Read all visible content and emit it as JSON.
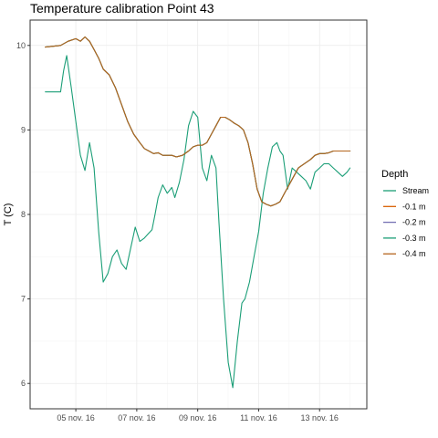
{
  "chart_data": {
    "type": "line",
    "title": "Temperature calibration Point 43",
    "xlabel": "",
    "ylabel": "T (C)",
    "x_tick_labels": [
      "05 nov. 16",
      "07 nov. 16",
      "09 nov. 16",
      "11 nov. 16",
      "13 nov. 16"
    ],
    "x_tick_days": [
      5,
      7,
      9,
      11,
      13
    ],
    "y_ticks": [
      6,
      7,
      8,
      9,
      10
    ],
    "xlim": [
      3.5,
      14.55
    ],
    "ylim": [
      5.7,
      10.3
    ],
    "grid": true,
    "legend": {
      "title": "Depth",
      "position": "right"
    },
    "series": [
      {
        "name": "Stream",
        "color": "#1b9e77",
        "x": [
          4.0,
          4.5,
          4.6,
          4.7,
          4.85,
          5.0,
          5.15,
          5.3,
          5.45,
          5.6,
          5.75,
          5.9,
          6.05,
          6.2,
          6.35,
          6.5,
          6.65,
          6.8,
          6.95,
          7.1,
          7.25,
          7.4,
          7.5,
          7.6,
          7.7,
          7.85,
          8.0,
          8.15,
          8.25,
          8.4,
          8.55,
          8.7,
          8.85,
          9.0,
          9.15,
          9.3,
          9.45,
          9.6,
          9.7,
          9.85,
          10.0,
          10.15,
          10.3,
          10.45,
          10.55,
          10.7,
          10.85,
          11.0,
          11.15,
          11.3,
          11.45,
          11.6,
          11.7,
          11.8,
          11.95,
          12.1,
          12.25,
          12.4,
          12.55,
          12.7,
          12.85,
          13.0,
          13.15,
          13.3,
          13.45,
          13.6,
          13.75,
          13.9,
          14.0
        ],
        "y": [
          9.45,
          9.45,
          9.7,
          9.88,
          9.5,
          9.1,
          8.7,
          8.52,
          8.85,
          8.55,
          7.8,
          7.2,
          7.3,
          7.5,
          7.58,
          7.42,
          7.35,
          7.6,
          7.85,
          7.68,
          7.72,
          7.78,
          7.82,
          8.0,
          8.2,
          8.35,
          8.25,
          8.32,
          8.2,
          8.38,
          8.65,
          9.05,
          9.22,
          9.15,
          8.55,
          8.4,
          8.7,
          8.55,
          7.9,
          7.0,
          6.25,
          5.95,
          6.5,
          6.95,
          7.0,
          7.2,
          7.5,
          7.8,
          8.25,
          8.55,
          8.8,
          8.85,
          8.75,
          8.7,
          8.3,
          8.55,
          8.5,
          8.45,
          8.4,
          8.3,
          8.5,
          8.55,
          8.6,
          8.6,
          8.55,
          8.5,
          8.45,
          8.5,
          8.55
        ]
      },
      {
        "name": "-0.1 m",
        "color": "#d95f02",
        "x": [
          4.0,
          4.5,
          4.75,
          5.0,
          5.15,
          5.3,
          5.45,
          5.6,
          5.75,
          5.9,
          6.1,
          6.3,
          6.5,
          6.7,
          6.9,
          7.1,
          7.25,
          7.4,
          7.55,
          7.7,
          7.85,
          8.0,
          8.15,
          8.3,
          8.5,
          8.7,
          8.85,
          9.0,
          9.15,
          9.3,
          9.45,
          9.6,
          9.75,
          9.9,
          10.05,
          10.2,
          10.35,
          10.5,
          10.65,
          10.8,
          10.95,
          11.1,
          11.25,
          11.4,
          11.55,
          11.7,
          11.85,
          12.0,
          12.15,
          12.3,
          12.5,
          12.7,
          12.85,
          13.0,
          13.15,
          13.3,
          13.45,
          13.6,
          13.75,
          13.9,
          14.0
        ],
        "y": [
          9.98,
          10.0,
          10.05,
          10.08,
          10.05,
          10.1,
          10.05,
          9.95,
          9.85,
          9.72,
          9.65,
          9.5,
          9.3,
          9.1,
          8.95,
          8.85,
          8.78,
          8.75,
          8.72,
          8.73,
          8.7,
          8.7,
          8.7,
          8.68,
          8.7,
          8.75,
          8.8,
          8.82,
          8.82,
          8.85,
          8.95,
          9.05,
          9.15,
          9.15,
          9.12,
          9.08,
          9.05,
          9.0,
          8.85,
          8.6,
          8.3,
          8.15,
          8.12,
          8.1,
          8.12,
          8.15,
          8.25,
          8.35,
          8.45,
          8.55,
          8.6,
          8.65,
          8.7,
          8.72,
          8.72,
          8.73,
          8.75,
          8.75,
          8.75,
          8.75,
          8.75
        ]
      },
      {
        "name": "-0.2 m",
        "color": "#7570b3",
        "x": [
          4.0,
          4.5,
          4.75,
          5.0,
          5.15,
          5.3,
          5.45,
          5.6,
          5.75,
          5.9,
          6.1,
          6.3,
          6.5,
          6.7,
          6.9,
          7.1,
          7.25,
          7.4,
          7.55,
          7.7,
          7.85,
          8.0,
          8.15,
          8.3,
          8.5,
          8.7,
          8.85,
          9.0,
          9.15,
          9.3,
          9.45,
          9.6,
          9.75,
          9.9,
          10.05,
          10.2,
          10.35,
          10.5,
          10.65,
          10.8,
          10.95,
          11.1,
          11.25,
          11.4,
          11.55,
          11.7,
          11.85,
          12.0,
          12.15,
          12.3,
          12.5,
          12.7,
          12.85,
          13.0,
          13.15,
          13.3,
          13.45,
          13.6,
          13.75,
          13.9,
          14.0
        ],
        "y": [
          9.98,
          10.0,
          10.05,
          10.08,
          10.05,
          10.1,
          10.05,
          9.95,
          9.85,
          9.72,
          9.65,
          9.5,
          9.3,
          9.1,
          8.95,
          8.85,
          8.78,
          8.75,
          8.72,
          8.73,
          8.7,
          8.7,
          8.7,
          8.68,
          8.7,
          8.75,
          8.8,
          8.82,
          8.82,
          8.85,
          8.95,
          9.05,
          9.15,
          9.15,
          9.12,
          9.08,
          9.05,
          9.0,
          8.85,
          8.6,
          8.3,
          8.15,
          8.12,
          8.1,
          8.12,
          8.15,
          8.25,
          8.35,
          8.45,
          8.55,
          8.6,
          8.65,
          8.7,
          8.72,
          8.72,
          8.73,
          8.75,
          8.75,
          8.75,
          8.75,
          8.75
        ]
      },
      {
        "name": "-0.3 m",
        "color": "#1b9e77",
        "x": [
          4.0,
          4.5,
          4.75,
          5.0,
          5.15,
          5.3,
          5.45,
          5.6,
          5.75,
          5.9,
          6.1,
          6.3,
          6.5,
          6.7,
          6.9,
          7.1,
          7.25,
          7.4,
          7.55,
          7.7,
          7.85,
          8.0,
          8.15,
          8.3,
          8.5,
          8.7,
          8.85,
          9.0,
          9.15,
          9.3,
          9.45,
          9.6,
          9.75,
          9.9,
          10.05,
          10.2,
          10.35,
          10.5,
          10.65,
          10.8,
          10.95,
          11.1,
          11.25,
          11.4,
          11.55,
          11.7,
          11.85,
          12.0,
          12.15,
          12.3,
          12.5,
          12.7,
          12.85,
          13.0,
          13.15,
          13.3,
          13.45,
          13.6,
          13.75,
          13.9,
          14.0
        ],
        "y": [
          9.98,
          10.0,
          10.05,
          10.08,
          10.05,
          10.1,
          10.05,
          9.95,
          9.85,
          9.72,
          9.65,
          9.5,
          9.3,
          9.1,
          8.95,
          8.85,
          8.78,
          8.75,
          8.72,
          8.73,
          8.7,
          8.7,
          8.7,
          8.68,
          8.7,
          8.75,
          8.8,
          8.82,
          8.82,
          8.85,
          8.95,
          9.05,
          9.15,
          9.15,
          9.12,
          9.08,
          9.05,
          9.0,
          8.85,
          8.6,
          8.3,
          8.15,
          8.12,
          8.1,
          8.12,
          8.15,
          8.25,
          8.35,
          8.45,
          8.55,
          8.6,
          8.65,
          8.7,
          8.72,
          8.72,
          8.73,
          8.75,
          8.75,
          8.75,
          8.75,
          8.75
        ]
      },
      {
        "name": "-0.4 m",
        "color": "#b5651d",
        "x": [
          4.0,
          4.5,
          4.75,
          5.0,
          5.15,
          5.3,
          5.45,
          5.6,
          5.75,
          5.9,
          6.1,
          6.3,
          6.5,
          6.7,
          6.9,
          7.1,
          7.25,
          7.4,
          7.55,
          7.7,
          7.85,
          8.0,
          8.15,
          8.3,
          8.5,
          8.7,
          8.85,
          9.0,
          9.15,
          9.3,
          9.45,
          9.6,
          9.75,
          9.9,
          10.05,
          10.2,
          10.35,
          10.5,
          10.65,
          10.8,
          10.95,
          11.1,
          11.25,
          11.4,
          11.55,
          11.7,
          11.85,
          12.0,
          12.15,
          12.3,
          12.5,
          12.7,
          12.85,
          13.0,
          13.15,
          13.3,
          13.45,
          13.6,
          13.75,
          13.9,
          14.0
        ],
        "y": [
          9.98,
          10.0,
          10.05,
          10.08,
          10.05,
          10.1,
          10.05,
          9.95,
          9.85,
          9.72,
          9.65,
          9.5,
          9.3,
          9.1,
          8.95,
          8.85,
          8.78,
          8.75,
          8.72,
          8.73,
          8.7,
          8.7,
          8.7,
          8.68,
          8.7,
          8.75,
          8.8,
          8.82,
          8.82,
          8.85,
          8.95,
          9.05,
          9.15,
          9.15,
          9.12,
          9.08,
          9.05,
          9.0,
          8.85,
          8.6,
          8.3,
          8.15,
          8.12,
          8.1,
          8.12,
          8.15,
          8.25,
          8.35,
          8.45,
          8.55,
          8.6,
          8.65,
          8.7,
          8.72,
          8.72,
          8.73,
          8.75,
          8.75,
          8.75,
          8.75,
          8.75
        ]
      }
    ]
  }
}
